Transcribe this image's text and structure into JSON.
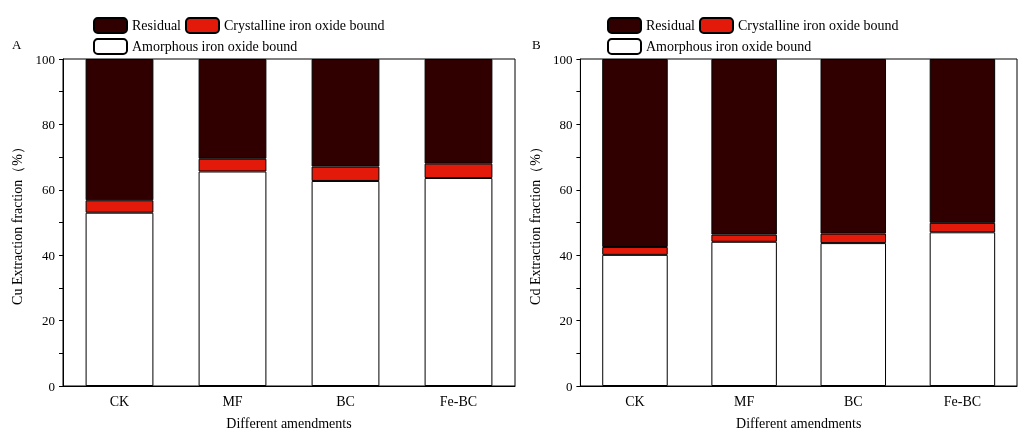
{
  "chart_data": [
    {
      "type": "bar",
      "stacked": true,
      "xlabel": "Different amendments",
      "ylabel": "Cu Extraction fraction（%）",
      "annotations": [
        "A"
      ],
      "categories": [
        "CK",
        "MF",
        "BC",
        "Fe-BC"
      ],
      "series": [
        {
          "name": "Amorphous iron oxide bound",
          "color": "#ffffff",
          "values": [
            53.0,
            65.6,
            62.7,
            63.6
          ]
        },
        {
          "name": "Crystalline iron oxide bound",
          "color": "#e3190a",
          "values": [
            3.8,
            3.9,
            4.4,
            4.4
          ]
        },
        {
          "name": "Residual",
          "color": "#300000",
          "values": [
            43.2,
            30.5,
            32.9,
            32.0
          ]
        }
      ],
      "ylim": [
        0,
        100
      ],
      "yticks": [
        0,
        {
          "value": 10,
          "label": null
        },
        20,
        {
          "value": 30,
          "label": null
        },
        40,
        {
          "value": 50,
          "label": null
        },
        60,
        {
          "value": 70,
          "label": null
        },
        80,
        {
          "value": 90,
          "label": null
        },
        100
      ],
      "grid": false,
      "legend": "top left"
    },
    {
      "type": "bar",
      "stacked": true,
      "xlabel": "Different amendments",
      "ylabel": "Cd Extraction fraction（%）",
      "annotations": [
        "B"
      ],
      "categories": [
        "CK",
        "MF",
        "BC",
        "Fe-BC"
      ],
      "series": [
        {
          "name": "Amorphous iron oxide bound",
          "color": "#ffffff",
          "values": [
            40.1,
            44.1,
            43.7,
            47.0
          ]
        },
        {
          "name": "Crystalline iron oxide bound",
          "color": "#e3190a",
          "values": [
            2.4,
            2.2,
            2.9,
            2.9
          ]
        },
        {
          "name": "Residual",
          "color": "#300000",
          "values": [
            57.5,
            53.7,
            53.4,
            50.1
          ]
        }
      ],
      "ylim": [
        0,
        100
      ],
      "yticks": [
        0,
        {
          "value": 10,
          "label": null
        },
        20,
        {
          "value": 30,
          "label": null
        },
        40,
        {
          "value": 50,
          "label": null
        },
        60,
        {
          "value": 70,
          "label": null
        },
        80,
        {
          "value": 90,
          "label": null
        },
        100
      ],
      "grid": false,
      "legend": "top left"
    }
  ]
}
